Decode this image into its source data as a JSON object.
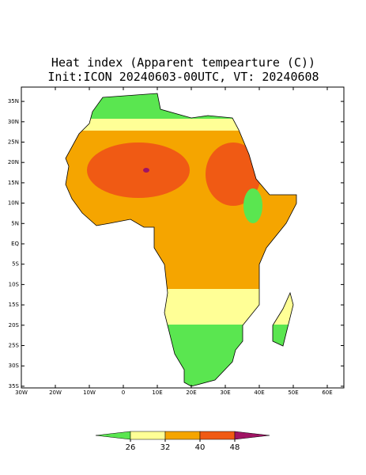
{
  "map": {
    "title": "Heat index (Apparent tempearture (C))",
    "subtitle": "Init:ICON 20240603-00UTC, VT: 20240608",
    "lat_ticks": [
      {
        "value": 35,
        "label": "35N"
      },
      {
        "value": 30,
        "label": "30N"
      },
      {
        "value": 25,
        "label": "25N"
      },
      {
        "value": 20,
        "label": "20N"
      },
      {
        "value": 15,
        "label": "15N"
      },
      {
        "value": 10,
        "label": "10N"
      },
      {
        "value": 5,
        "label": "5N"
      },
      {
        "value": 0,
        "label": "EQ"
      },
      {
        "value": -5,
        "label": "5S"
      },
      {
        "value": -10,
        "label": "10S"
      },
      {
        "value": -15,
        "label": "15S"
      },
      {
        "value": -20,
        "label": "20S"
      },
      {
        "value": -25,
        "label": "25S"
      },
      {
        "value": -30,
        "label": "30S"
      },
      {
        "value": -35,
        "label": "35S"
      }
    ],
    "lon_ticks": [
      {
        "value": -30,
        "label": "30W"
      },
      {
        "value": -20,
        "label": "20W"
      },
      {
        "value": -10,
        "label": "10W"
      },
      {
        "value": 0,
        "label": "0"
      },
      {
        "value": 10,
        "label": "10E"
      },
      {
        "value": 20,
        "label": "20E"
      },
      {
        "value": 30,
        "label": "30E"
      },
      {
        "value": 40,
        "label": "40E"
      },
      {
        "value": 50,
        "label": "50E"
      },
      {
        "value": 60,
        "label": "60E"
      }
    ]
  },
  "colorbar": {
    "ticks": [
      26,
      32,
      40,
      48
    ],
    "colors": [
      "#5ae650",
      "#ffff96",
      "#f5a500",
      "#f05a14",
      "#a01464"
    ]
  }
}
